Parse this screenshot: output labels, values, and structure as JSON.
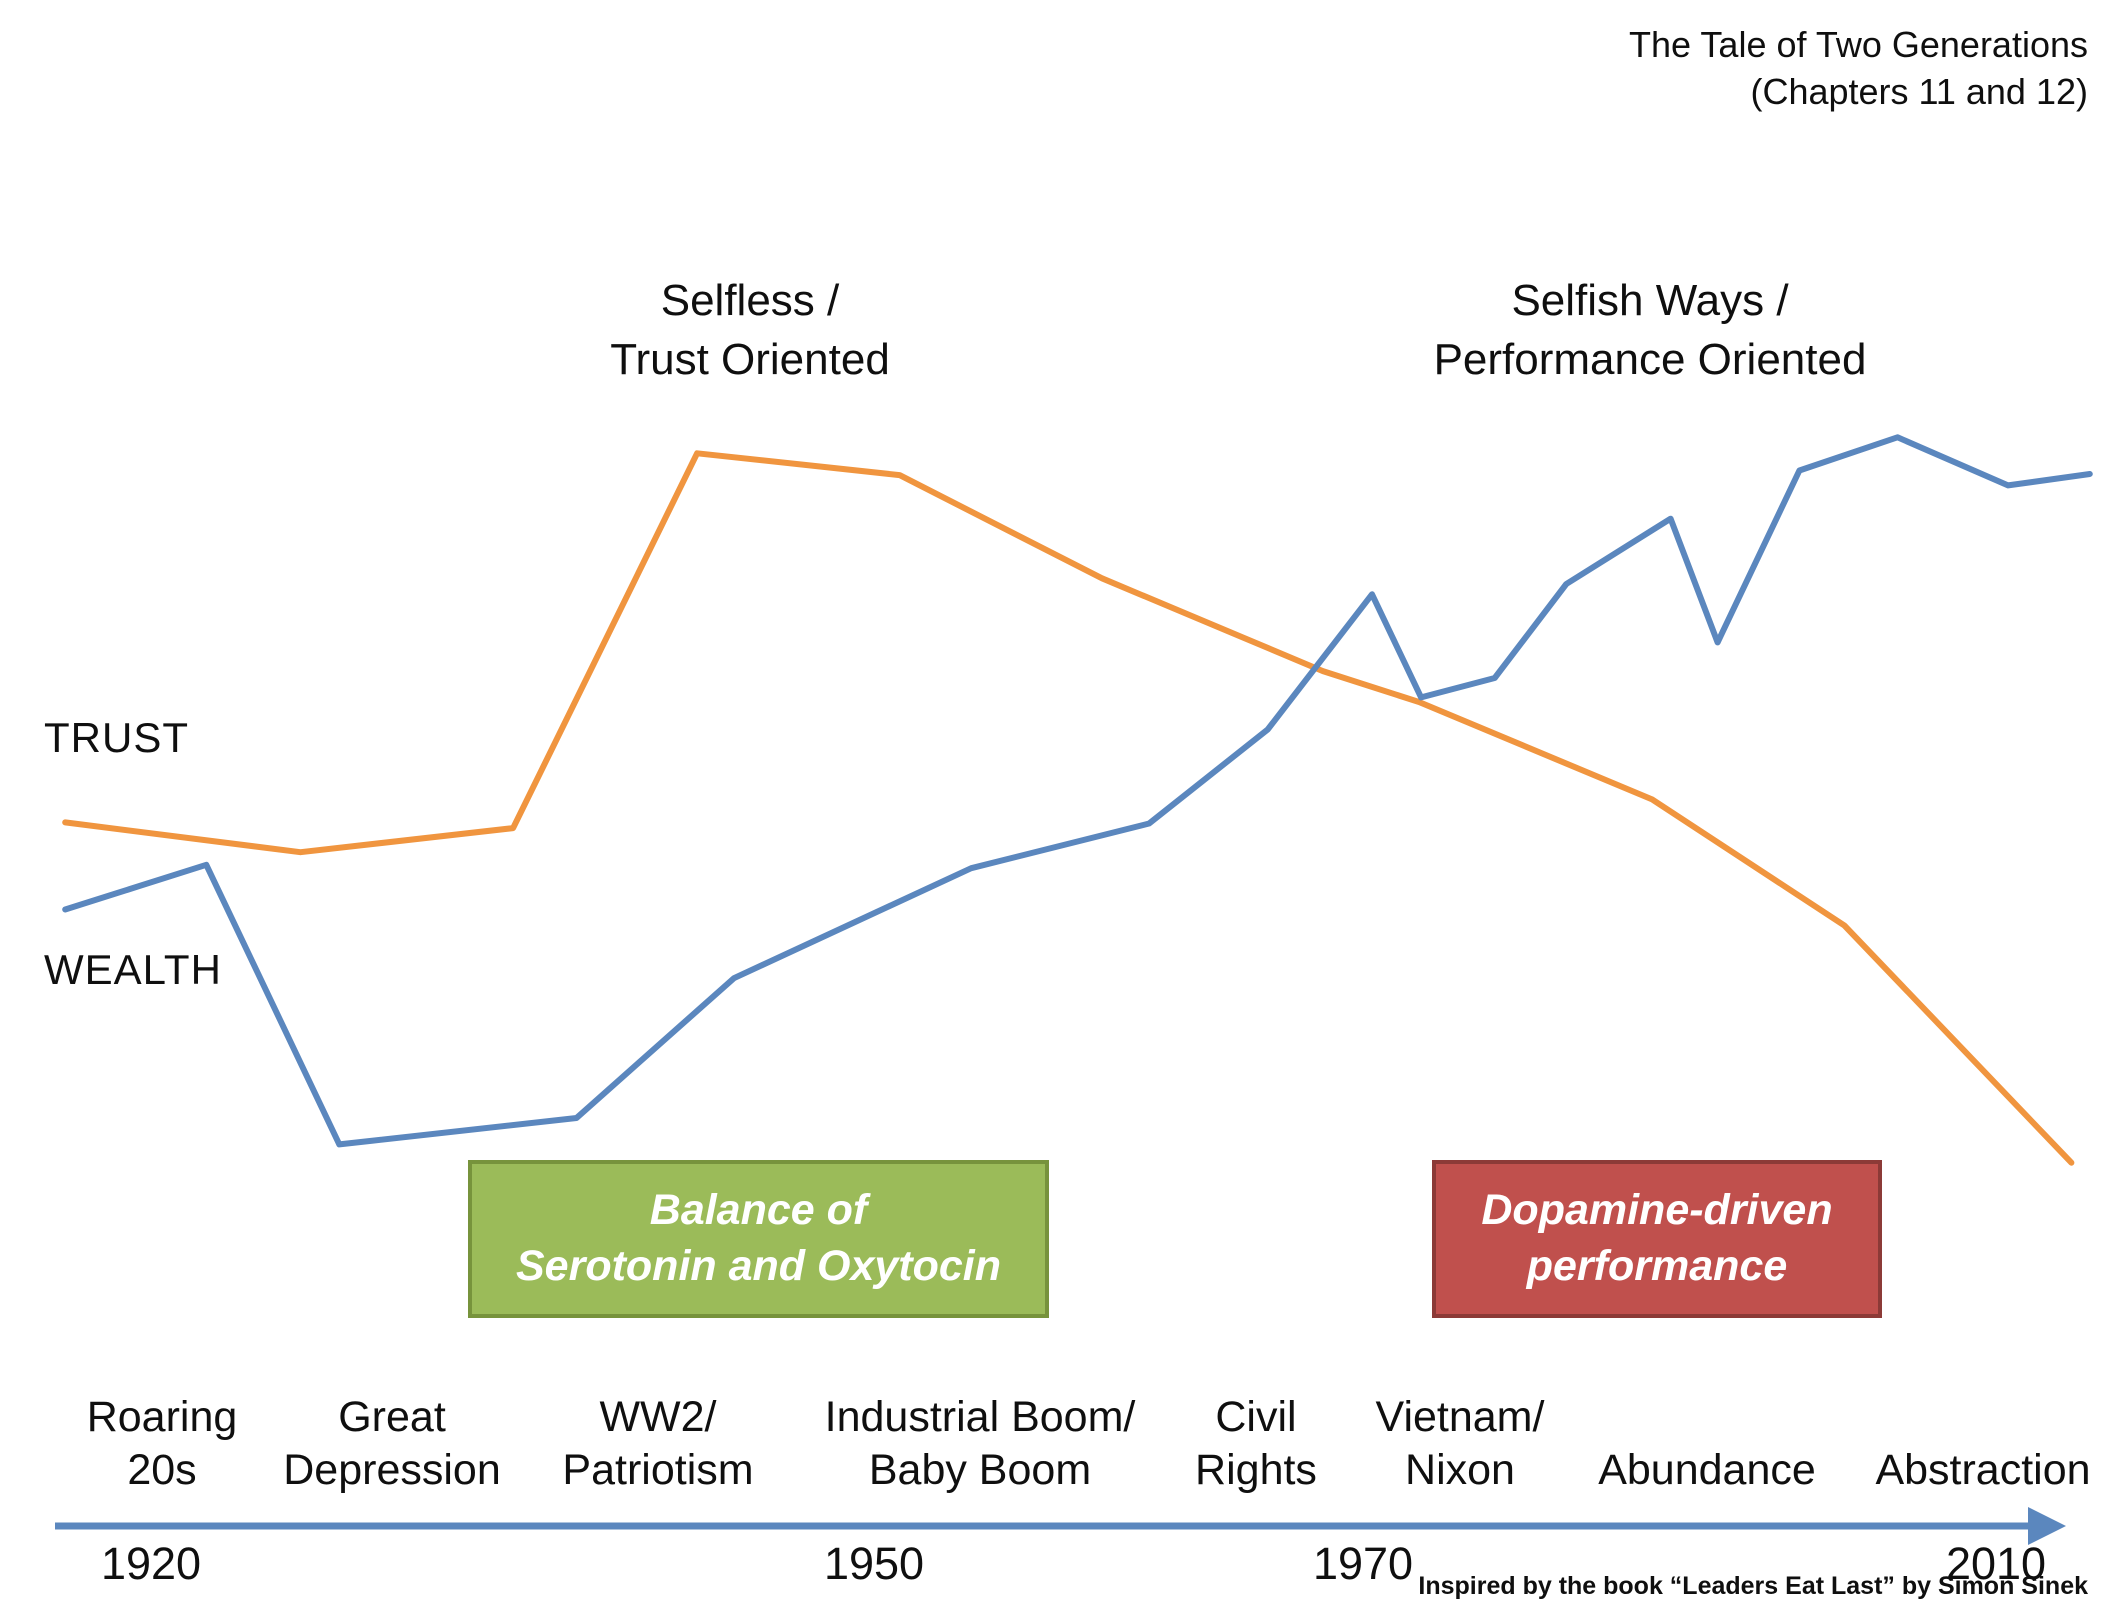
{
  "title": {
    "text": "The Tale of Two Generations\n(Chapters 11 and 12)"
  },
  "annotations": {
    "selfless": "Selfless /\nTrust Oriented",
    "selfish": "Selfish Ways /\nPerformance Oriented"
  },
  "series_labels": {
    "trust": "TRUST",
    "wealth": "WEALTH"
  },
  "callouts": {
    "serotonin": {
      "text": "Balance of\nSerotonin and Oxytocin",
      "fill": "#9BBB59",
      "border": "#77933C",
      "text_color": "#FFFFFF"
    },
    "dopamine": {
      "text": "Dopamine-driven\nperformance",
      "fill": "#C0504D",
      "border": "#8C3A37",
      "text_color": "#FFFFFF"
    }
  },
  "timeline": {
    "eras": [
      {
        "label": "Roaring\n20s"
      },
      {
        "label": "Great\nDepression"
      },
      {
        "label": "WW2/\nPatriotism"
      },
      {
        "label": "Industrial Boom/\nBaby Boom"
      },
      {
        "label": "Civil\nRights"
      },
      {
        "label": "Vietnam/\nNixon"
      },
      {
        "label": "Abundance"
      },
      {
        "label": "Abstraction"
      }
    ],
    "years": [
      "1920",
      "1950",
      "1970",
      "2010"
    ]
  },
  "credit": "Inspired by the book “Leaders Eat Last” by Simon Sinek",
  "chart_data": {
    "type": "line",
    "title": "The Tale of Two Generations (Chapters 11 and 12)",
    "x_axis": {
      "unit": "year",
      "arrow": true,
      "arrow_color": "#5B87BE",
      "ticks": [
        {
          "label": "1920",
          "x_pct": 4.7
        },
        {
          "label": "1950",
          "x_pct": 40.0
        },
        {
          "label": "1970",
          "x_pct": 64.0
        },
        {
          "label": "2010",
          "x_pct": 94.9
        }
      ]
    },
    "y_axis": {
      "visible": false,
      "unit": "relative level 0-100 (qualitative, higher = more)"
    },
    "series": [
      {
        "name": "TRUST",
        "color": "#F0953F",
        "points": [
          [
            0.5,
            61.4
          ],
          [
            12.0,
            58.8
          ],
          [
            22.4,
            60.9
          ],
          [
            31.4,
            93.6
          ],
          [
            41.3,
            91.7
          ],
          [
            51.2,
            82.7
          ],
          [
            62.0,
            74.6
          ],
          [
            66.7,
            71.9
          ],
          [
            78.1,
            63.4
          ],
          [
            87.5,
            52.4
          ],
          [
            98.6,
            31.7
          ]
        ]
      },
      {
        "name": "WEALTH",
        "color": "#5B87BE",
        "points": [
          [
            0.5,
            53.8
          ],
          [
            7.4,
            57.7
          ],
          [
            13.9,
            33.3
          ],
          [
            25.5,
            35.6
          ],
          [
            33.2,
            47.8
          ],
          [
            44.8,
            57.4
          ],
          [
            53.5,
            61.3
          ],
          [
            59.3,
            69.5
          ],
          [
            64.4,
            81.3
          ],
          [
            66.8,
            72.3
          ],
          [
            70.4,
            74.0
          ],
          [
            73.9,
            82.2
          ],
          [
            79.0,
            87.9
          ],
          [
            81.3,
            77.1
          ],
          [
            85.3,
            92.1
          ],
          [
            90.1,
            95.0
          ],
          [
            95.5,
            90.8
          ],
          [
            99.5,
            91.8
          ]
        ]
      }
    ]
  }
}
